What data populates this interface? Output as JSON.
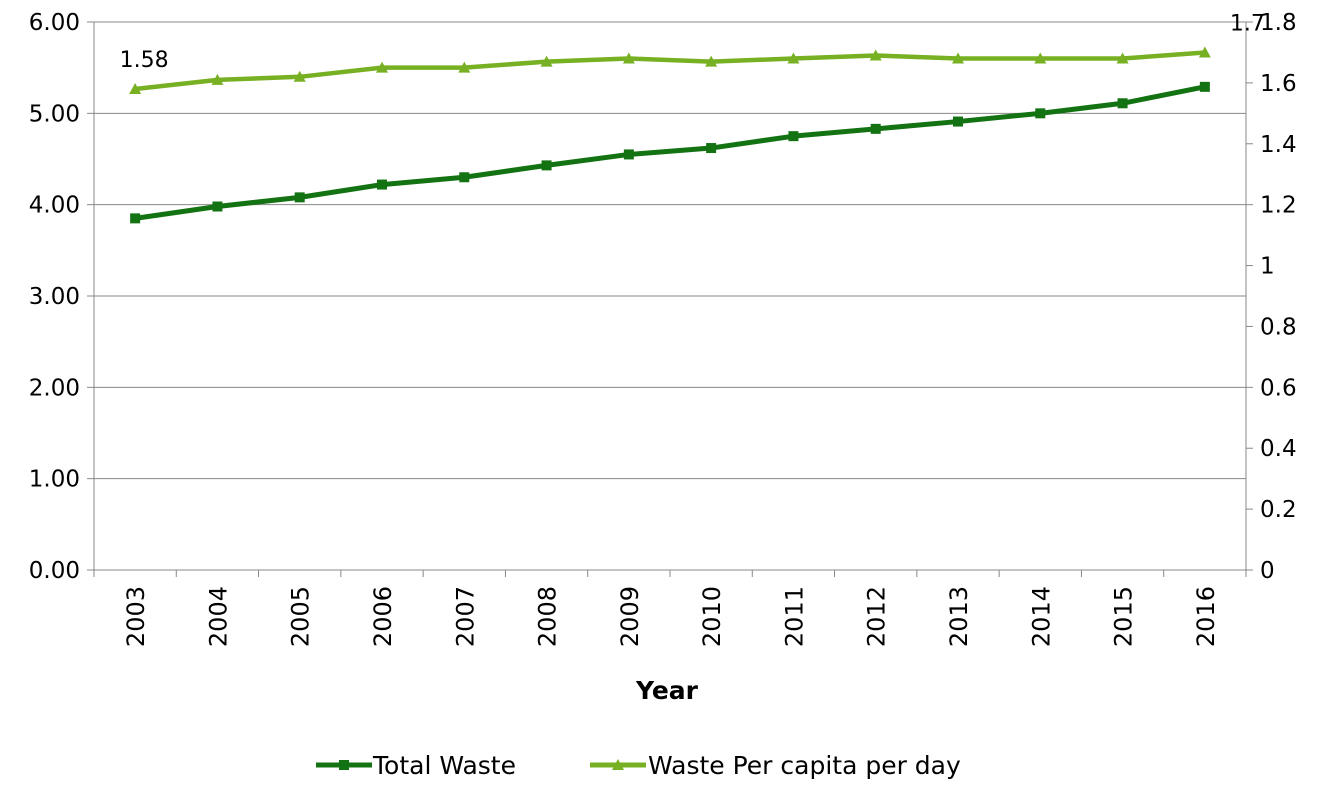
{
  "chart_data": {
    "type": "line",
    "title": "",
    "xlabel": "Year",
    "categories": [
      "2003",
      "2004",
      "2005",
      "2006",
      "2007",
      "2008",
      "2009",
      "2010",
      "2011",
      "2012",
      "2013",
      "2014",
      "2015",
      "2016"
    ],
    "y_left": {
      "label": "",
      "ylim": [
        0,
        6
      ],
      "ticks": [
        "0.00",
        "1.00",
        "2.00",
        "3.00",
        "4.00",
        "5.00",
        "6.00"
      ]
    },
    "y_right": {
      "label": "",
      "ylim": [
        0,
        1.8
      ],
      "ticks": [
        "0",
        "0.2",
        "0.4",
        "0.6",
        "0.8",
        "1",
        "1.2",
        "1.4",
        "1.6",
        "1.8"
      ]
    },
    "grid": true,
    "legend_position": "bottom",
    "series": [
      {
        "name": "Total Waste",
        "axis": "left",
        "marker": "square",
        "color": "#137313",
        "values": [
          3.85,
          3.98,
          4.08,
          4.22,
          4.3,
          4.43,
          4.55,
          4.62,
          4.75,
          4.83,
          4.91,
          5.0,
          5.11,
          5.29
        ]
      },
      {
        "name": "Waste Per capita per day",
        "axis": "right",
        "marker": "triangle",
        "color": "#77b022",
        "values": [
          1.58,
          1.61,
          1.62,
          1.65,
          1.65,
          1.67,
          1.68,
          1.67,
          1.68,
          1.69,
          1.68,
          1.68,
          1.68,
          1.7
        ]
      }
    ],
    "data_labels": [
      {
        "series": 1,
        "index": 0,
        "text": "1.58"
      },
      {
        "series": 1,
        "index": 13,
        "text": "1.7"
      }
    ]
  }
}
